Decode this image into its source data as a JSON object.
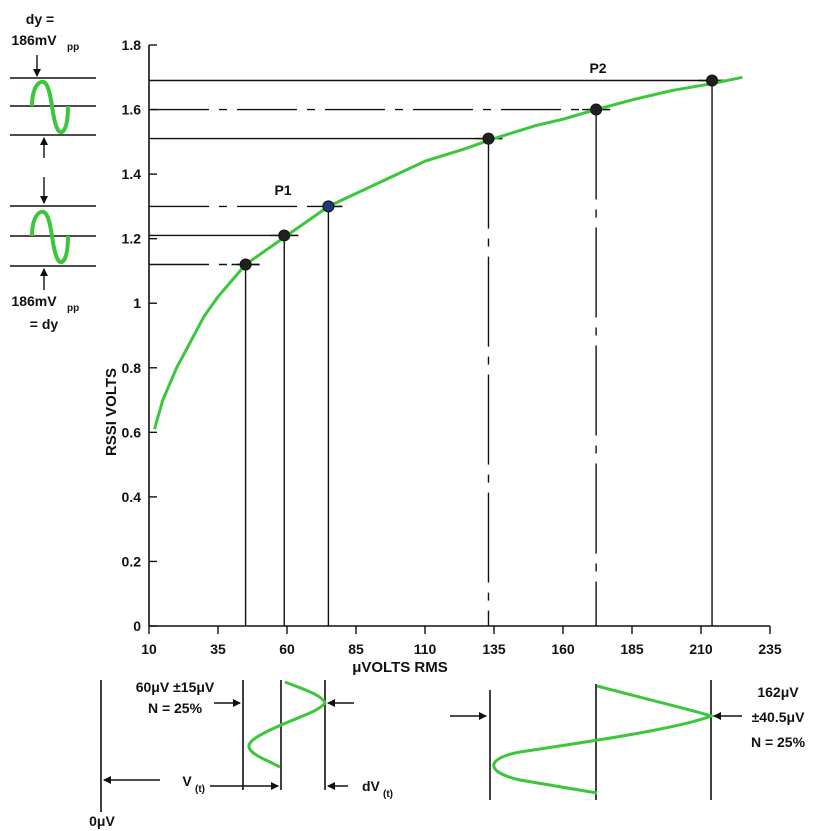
{
  "chart_data": {
    "type": "line",
    "xlabel": "μVOLTS RMS",
    "ylabel": "RSSI VOLTS",
    "xlim": [
      10,
      235
    ],
    "ylim": [
      0,
      1.8
    ],
    "x_ticks": [
      "10",
      "35",
      "60",
      "85",
      "110",
      "135",
      "160",
      "185",
      "210",
      "235"
    ],
    "y_ticks": [
      "0",
      "0.2",
      "0.4",
      "0.6",
      "0.8",
      "1",
      "1.2",
      "1.4",
      "1.6",
      "1.8"
    ],
    "series": [
      {
        "x": [
          12,
          15,
          20,
          25,
          30,
          35,
          40,
          45,
          50,
          55,
          60,
          70,
          75,
          85,
          100,
          110,
          125,
          135,
          150,
          160,
          172,
          185,
          200,
          214,
          225
        ],
        "y": [
          0.61,
          0.7,
          0.8,
          0.88,
          0.96,
          1.02,
          1.07,
          1.12,
          1.15,
          1.18,
          1.21,
          1.27,
          1.3,
          1.34,
          1.4,
          1.44,
          1.48,
          1.51,
          1.55,
          1.57,
          1.6,
          1.63,
          1.66,
          1.68,
          1.7
        ],
        "color": "#3cc63c"
      }
    ],
    "markers": [
      {
        "x": 45,
        "y": 1.12,
        "color": "#202020"
      },
      {
        "x": 59,
        "y": 1.21,
        "color": "#202020"
      },
      {
        "x": 75,
        "y": 1.3,
        "color": "#1e3a7a"
      },
      {
        "x": 133,
        "y": 1.51,
        "color": "#202020"
      },
      {
        "x": 172,
        "y": 1.6,
        "color": "#202020"
      },
      {
        "x": 214,
        "y": 1.69,
        "color": "#202020"
      }
    ],
    "annotations": {
      "p1": "P1",
      "p2": "P2"
    }
  },
  "left_panel": {
    "top_label_1": "dy =",
    "top_label_2": "186mV",
    "top_label_sub": "pp",
    "bottom_label_1": "186mV",
    "bottom_label_sub": "pp",
    "bottom_label_2": "= dy"
  },
  "bottom_panel": {
    "left_line1": "60μV ±15μV",
    "left_line2": "N = 25%",
    "vt_label": "V",
    "vt_sub": "(t)",
    "dvt_label": "dV",
    "dvt_sub": "(t)",
    "zero_label": "0μV",
    "right_line1": "162μV",
    "right_line2": "±40.5μV",
    "right_line3": "N = 25%"
  },
  "colors": {
    "curve": "#3cc63c",
    "axis": "#111111"
  }
}
